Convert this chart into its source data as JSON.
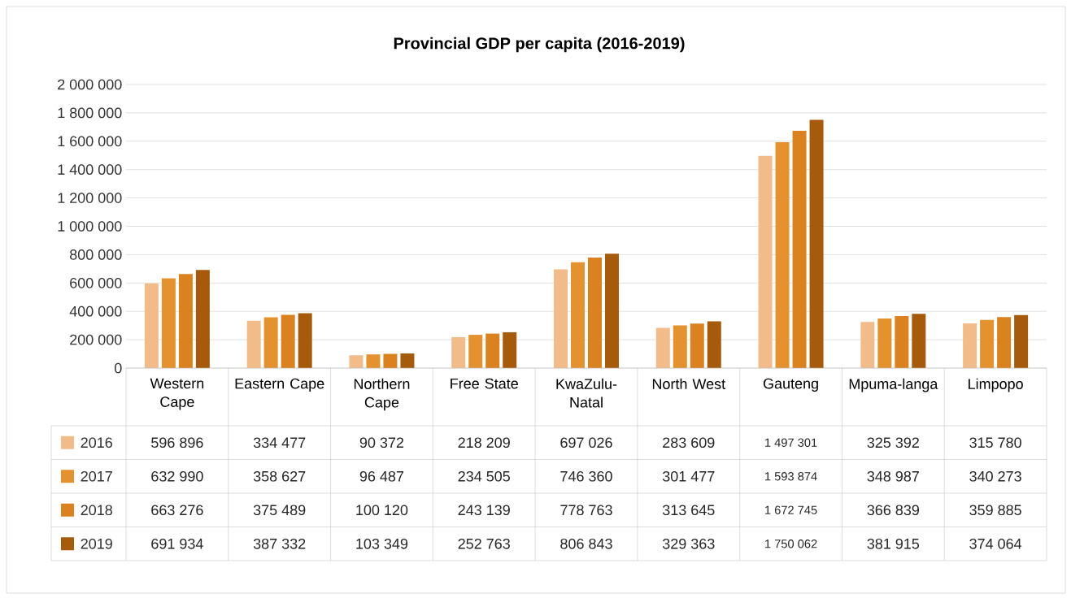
{
  "chart_data": {
    "type": "bar",
    "title": "Provincial GDP per capita (2016-2019)",
    "categories": [
      "Western Cape",
      "Eastern Cape",
      "Northern Cape",
      "Free State",
      "KwaZulu-Natal",
      "North West",
      "Gauteng",
      "Mpuma-langa",
      "Limpopo"
    ],
    "series": [
      {
        "name": "2016",
        "color": "#f1bc8a",
        "values": [
          596896,
          334477,
          90372,
          218209,
          697026,
          283609,
          1497301,
          325392,
          315780
        ],
        "value_labels": [
          "596 896",
          "334 477",
          "90 372",
          "218 209",
          "697 026",
          "283 609",
          "1 497 301",
          "325 392",
          "315 780"
        ]
      },
      {
        "name": "2017",
        "color": "#e3922f",
        "values": [
          632990,
          358627,
          96487,
          234505,
          746360,
          301477,
          1593874,
          348987,
          340273
        ],
        "value_labels": [
          "632 990",
          "358 627",
          "96 487",
          "234 505",
          "746 360",
          "301 477",
          "1 593 874",
          "348 987",
          "340 273"
        ]
      },
      {
        "name": "2018",
        "color": "#d9821f",
        "values": [
          663276,
          375489,
          100120,
          243139,
          778763,
          313645,
          1672745,
          366839,
          359885
        ],
        "value_labels": [
          "663 276",
          "375 489",
          "100 120",
          "243 139",
          "778 763",
          "313 645",
          "1 672 745",
          "366 839",
          "359 885"
        ]
      },
      {
        "name": "2019",
        "color": "#a65b0c",
        "values": [
          691934,
          387332,
          103349,
          252763,
          806843,
          329363,
          1750062,
          381915,
          374064
        ],
        "value_labels": [
          "691 934",
          "387 332",
          "103 349",
          "252 763",
          "806 843",
          "329 363",
          "1 750 062",
          "381 915",
          "374 064"
        ]
      }
    ],
    "ylim": [
      0,
      2000000
    ],
    "yticks": [
      {
        "value": 0,
        "label": "0"
      },
      {
        "value": 200000,
        "label": "200 000"
      },
      {
        "value": 400000,
        "label": "400 000"
      },
      {
        "value": 600000,
        "label": "600 000"
      },
      {
        "value": 800000,
        "label": "800 000"
      },
      {
        "value": 1000000,
        "label": "1 000 000"
      },
      {
        "value": 1200000,
        "label": "1 200 000"
      },
      {
        "value": 1400000,
        "label": "1 400 000"
      },
      {
        "value": 1600000,
        "label": "1 600 000"
      },
      {
        "value": 1800000,
        "label": "1 800 000"
      },
      {
        "value": 2000000,
        "label": "2 000 000"
      }
    ],
    "grid": "y",
    "legend": "bottom"
  }
}
